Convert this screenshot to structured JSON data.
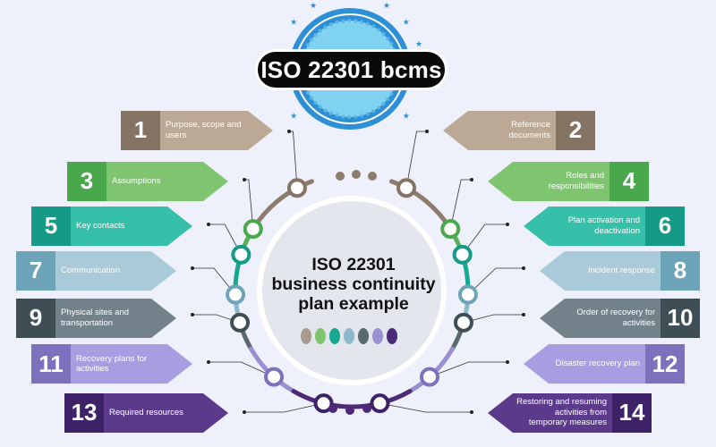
{
  "badge": {
    "title": "ISO 22301 bcms"
  },
  "center": {
    "title_line1": "ISO 22301",
    "title_line2": "business continuity",
    "title_line3": "plan example"
  },
  "colors": {
    "background": "#eef0fb",
    "badge_blue": "#2d8fd5",
    "ring": [
      "#8d7b6c",
      "#5aae5b",
      "#17a892",
      "#8bb8cc",
      "#5a6870",
      "#9a8fd0",
      "#4c2a78"
    ]
  },
  "items": [
    {
      "number": "1",
      "label": "Purpose, scope and users",
      "side": "left",
      "color": "#857364",
      "light": "#bba996"
    },
    {
      "number": "2",
      "label": "Reference documents",
      "side": "right",
      "color": "#857364",
      "light": "#bba996"
    },
    {
      "number": "3",
      "label": "Assumptions",
      "side": "left",
      "color": "#4aa84c",
      "light": "#7fc56f"
    },
    {
      "number": "4",
      "label": "Roles and responsibilities",
      "side": "right",
      "color": "#4aa84c",
      "light": "#7fc56f"
    },
    {
      "number": "5",
      "label": "Key contacts",
      "side": "left",
      "color": "#149a86",
      "light": "#36bfa9"
    },
    {
      "number": "6",
      "label": "Plan activation and deactivation",
      "side": "right",
      "color": "#149a86",
      "light": "#36bfa9"
    },
    {
      "number": "7",
      "label": "Communication",
      "side": "left",
      "color": "#6ea4ba",
      "light": "#a9cad8"
    },
    {
      "number": "8",
      "label": "Incident response",
      "side": "right",
      "color": "#6ea4ba",
      "light": "#a9cad8"
    },
    {
      "number": "9",
      "label": "Physical sites and transportation",
      "side": "left",
      "color": "#3f4d55",
      "light": "#73828a"
    },
    {
      "number": "10",
      "label": "Order of recovery for activities",
      "side": "right",
      "color": "#3f4d55",
      "light": "#73828a"
    },
    {
      "number": "11",
      "label": "Recovery plans for activities",
      "side": "left",
      "color": "#7d70bd",
      "light": "#a89de0"
    },
    {
      "number": "12",
      "label": "Disaster recovery plan",
      "side": "right",
      "color": "#7d70bd",
      "light": "#a89de0"
    },
    {
      "number": "13",
      "label": "Required resources",
      "side": "left",
      "color": "#3e2268",
      "light": "#5b3a8c"
    },
    {
      "number": "14",
      "label": "Restoring and resuming activities from temporary measures",
      "side": "right",
      "color": "#3e2268",
      "light": "#5b3a8c"
    }
  ]
}
